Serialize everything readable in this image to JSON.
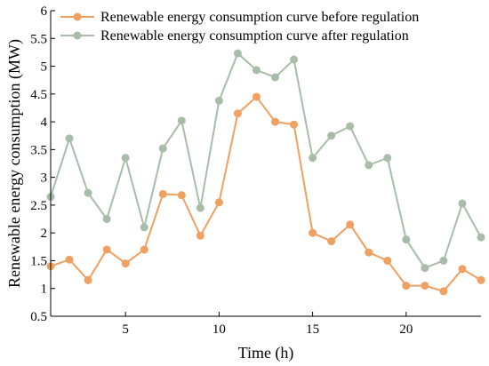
{
  "chart_data": {
    "type": "line",
    "title": "",
    "xlabel": "Time (h)",
    "ylabel": "Renewable energy consumption (MW)",
    "xlim": [
      1,
      24
    ],
    "ylim": [
      0.5,
      6
    ],
    "xticks": [
      5,
      10,
      15,
      20
    ],
    "yticks": [
      0.5,
      1,
      1.5,
      2,
      2.5,
      3,
      3.5,
      4,
      4.5,
      5,
      5.5,
      6
    ],
    "grid": false,
    "legend_position": "top-left",
    "x": [
      1,
      2,
      3,
      4,
      5,
      6,
      7,
      8,
      9,
      10,
      11,
      12,
      13,
      14,
      15,
      16,
      17,
      18,
      19,
      20,
      21,
      22,
      23,
      24
    ],
    "series": [
      {
        "name": "Renewable energy consumption curve before regulation",
        "color": "#F0A060",
        "marker": "circle",
        "values": [
          1.4,
          1.52,
          1.15,
          1.7,
          1.45,
          1.7,
          2.7,
          2.68,
          1.95,
          2.55,
          4.15,
          4.45,
          4.0,
          3.95,
          2.0,
          1.85,
          2.15,
          1.65,
          1.5,
          1.05,
          1.05,
          0.95,
          1.35,
          1.15
        ]
      },
      {
        "name": "Renewable energy consumption curve after regulation",
        "color": "#A8BDA8",
        "marker": "circle",
        "values": [
          2.65,
          3.7,
          2.72,
          2.25,
          3.35,
          2.1,
          3.52,
          4.02,
          2.45,
          4.38,
          5.23,
          4.93,
          4.8,
          5.12,
          3.35,
          3.75,
          3.92,
          3.22,
          3.35,
          1.88,
          1.37,
          1.5,
          2.53,
          1.92
        ]
      }
    ]
  }
}
